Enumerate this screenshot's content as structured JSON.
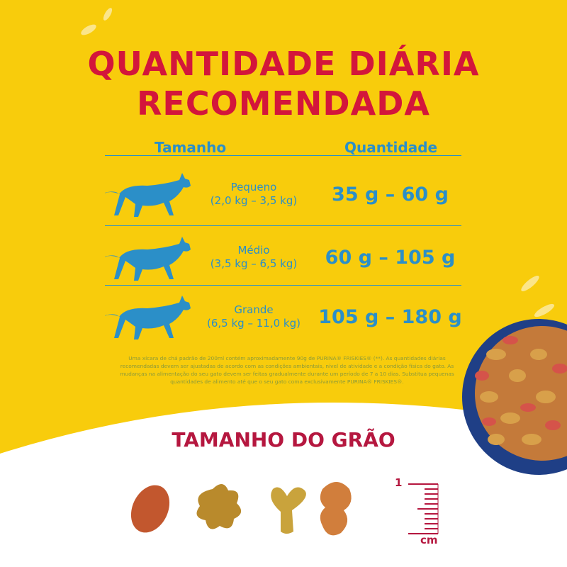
{
  "title_line1": "QUANTIDADE DIÁRIA",
  "title_line2": "RECOMENDADA",
  "table": {
    "header_size": "Tamanho",
    "header_quantity": "Quantidade",
    "rows": [
      {
        "size": "Pequeno",
        "weight": "(2,0 kg – 3,5 kg)",
        "quantity": "35 g – 60 g"
      },
      {
        "size": "Médio",
        "weight": "(3,5 kg – 6,5 kg)",
        "quantity": "60 g – 105 g"
      },
      {
        "size": "Grande",
        "weight": "(6,5 kg – 11,0 kg)",
        "quantity": "105 g – 180 g"
      }
    ]
  },
  "footnote": "Uma xícara de chá padrão de 200ml contém aproximadamente 90g de PURINA® FRISKIES® (**). As quantidades diárias recomendadas devem ser ajustadas de acordo com as condições ambientais, nível de atividade e a condição física do gato. As mudanças na alimentação do seu gato devem ser feitas gradualmente durante um período de 7 a 10 dias. Substitua pequenas quantidades de alimento até que o seu gato coma exclusivamente PURINA® FRISKIES®.",
  "grain_title": "TAMANHO DO GRÃO",
  "ruler": {
    "value": "1",
    "unit": "cm"
  },
  "colors": {
    "background": "#f8cc0c",
    "title": "#d3163b",
    "table_text": "#2b8fc8",
    "grain_title": "#b5173f"
  }
}
